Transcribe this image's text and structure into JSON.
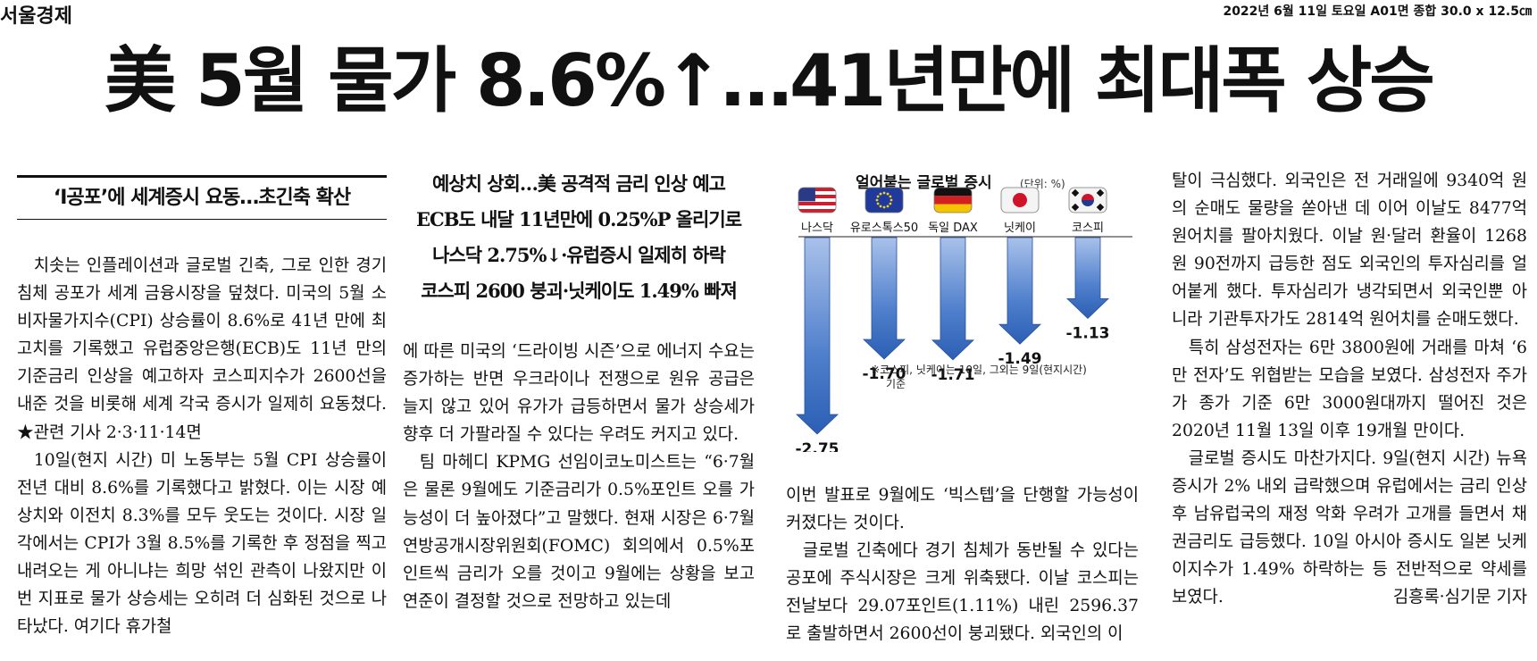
{
  "masthead": "서울경제",
  "issue_info": "2022년 6월 11일 토요일 A01면 종합 30.0 x 12.5㎝",
  "headline": "美 5월 물가 8.6%↑…41년만에 최대폭 상승",
  "col1": {
    "subhead": "‘I공포’에 세계증시 요동…초긴축 확산",
    "paragraphs": [
      "치솟는 인플레이션과 글로벌 긴축, 그로 인한 경기 침체 공포가 세계 금융시장을 덮쳤다. 미국의 5월 소비자물가지수(CPI) 상승률이 8.6%로 41년 만에 최고치를 기록했고 유럽중앙은행(ECB)도 11년 만의 기준금리 인상을 예고하자 코스피지수가 2600선을 내준 것을 비롯해 세계 각국 증시가 일제히 요동쳤다. ★관련 기사 2·3·11·14면",
      "10일(현지 시간) 미 노동부는 5월 CPI 상승률이 전년 대비 8.6%를 기록했다고 밝혔다. 이는 시장 예상치와 이전치 8.3%를 모두 웃도는 것이다. 시장 일각에서는 CPI가 3월 8.5%를 기록한 후 정점을 찍고 내려오는 게 아니냐는 희망 섞인 관측이 나왔지만 이번 지표로 물가 상승세는 오히려 더 심화된 것으로 나타났다. 여기다 휴가철"
    ]
  },
  "col2": {
    "deck_lines": [
      "예상치 상회…美 공격적 금리 인상 예고",
      "ECB도 내달 11년만에 0.25%P 올리기로",
      "나스닥 2.75%↓·유럽증시 일제히 하락",
      "코스피 2600 붕괴·닛케이도 1.49% 빠져"
    ],
    "paragraphs": [
      "에 따른 미국의 ‘드라이빙 시즌’으로 에너지 수요는 증가하는 반면 우크라이나 전쟁으로 원유 공급은 늘지 않고 있어 유가가 급등하면서 물가 상승세가 향후 더 가팔라질 수 있다는 우려도 커지고 있다.",
      "팀 마헤디 KPMG 선임이코노미스트는 “6·7월은 물론 9월에도 기준금리가 0.5%포인트 오를 가능성이 더 높아졌다”고 말했다. 현재 시장은 6·7월 연방공개시장위원회(FOMC) 회의에서 0.5%포인트씩 금리가 오를 것이고 9월에는 상황을 보고 연준이 결정할 것으로 전망하고 있는데"
    ]
  },
  "chart_data": {
    "type": "bar",
    "title": "얼어붙는 글로벌 증시",
    "unit": "(단위: %)",
    "categories": [
      "나스닥",
      "유로스톡스50",
      "독일 DAX",
      "닛케이",
      "코스피"
    ],
    "values": [
      -2.75,
      -1.7,
      -1.71,
      -1.49,
      -1.13
    ],
    "labels": [
      "-2.75",
      "-1.70",
      "-1.71",
      "-1.49",
      "-1.13"
    ],
    "flags": [
      "us-flag-icon",
      "eu-flag-icon",
      "germany-flag-icon",
      "japan-flag-icon",
      "korea-flag-icon"
    ],
    "note_lines": [
      "※코스피, 닛케이는 10일, 그외는 9일(현지시간)",
      "기준"
    ],
    "bar_color": "#2b5fb4"
  },
  "col3": {
    "paragraphs": [
      "이번 발표로 9월에도 ‘빅스텝’을 단행할 가능성이 커졌다는 것이다.",
      "글로벌 긴축에다 경기 침체가 동반될 수 있다는 공포에 주식시장은 크게 위축됐다. 이날 코스피는 전날보다 29.07포인트(1.11%) 내린 2596.37로 출발하면서 2600선이 붕괴됐다. 외국인의 이"
    ]
  },
  "col4": {
    "paragraphs": [
      "탈이 극심했다. 외국인은 전 거래일에 9340억 원의 순매도 물량을 쏟아낸 데 이어 이날도 8477억 원어치를 팔아치웠다. 이날 원·달러 환율이 1268원 90전까지 급등한 점도 외국인의 투자심리를 얼어붙게 했다. 투자심리가 냉각되면서 외국인뿐 아니라 기관투자가도 2814억 원어치를 순매도했다.",
      "특히 삼성전자는 6만 3800원에 거래를 마쳐 ‘6만 전자’도 위협받는 모습을 보였다. 삼성전자 주가가 종가 기준 6만 3000원대까지 떨어진 것은 2020년 11월 13일 이후 19개월 만이다.",
      "글로벌 증시도 마찬가지다. 9일(현지 시간) 뉴욕증시가 2% 내외 급락했으며 유럽에서는 금리 인상 후 남유럽국의 재정 악화 우려가 고개를 들면서 채권금리도 급등했다. 10일 아시아 증시도 일본 닛케이지수가 1.49% 하락하는 등 전반적으로 약세를 보였다."
    ],
    "byline": "김흥록·심기문 기자"
  }
}
